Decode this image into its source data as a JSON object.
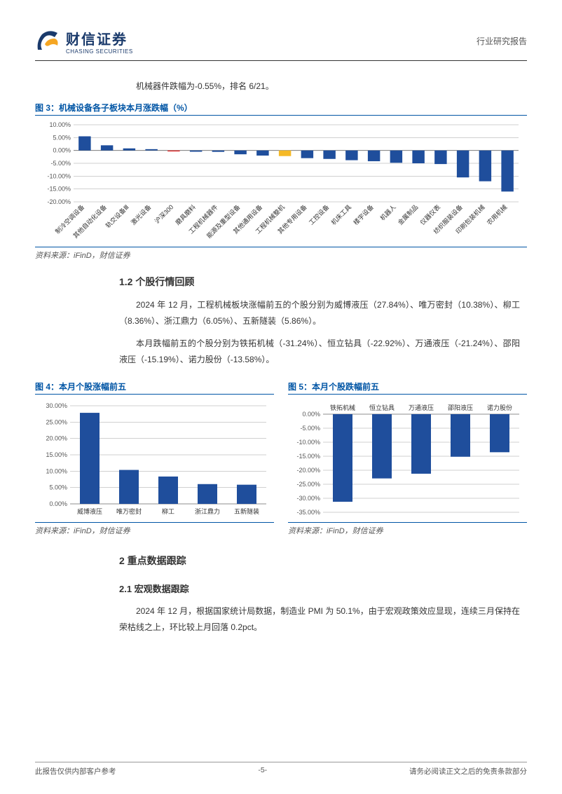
{
  "header": {
    "brand_cn": "财信证券",
    "brand_en": "CHASING SECURITIES",
    "report_type": "行业研究报告",
    "logo_colors": {
      "base": "#1a3a6b",
      "accent": "#f5a623"
    }
  },
  "intro_line": "机械器件跌幅为-0.55%，排名 6/21。",
  "fig3": {
    "title": "图 3：机械设备各子板块本月涨跌幅（%）",
    "source": "资料来源：iFinD，财信证券",
    "type": "bar",
    "ylim": [
      -20,
      10
    ],
    "ytick_step": 5,
    "ytick_format": "%",
    "bar_width": 0.55,
    "default_color": "#1f4e9c",
    "categories": [
      "制冷空调设备",
      "其他自动化设备",
      "轨交设备Ⅲ",
      "激光设备",
      "沪深300",
      "磨具磨料",
      "工程机械器件",
      "能源及重型设备",
      "其他通用设备",
      "工程机械整机",
      "其他专用设备",
      "工控设备",
      "机床工具",
      "楼宇设备",
      "机器人",
      "金属制品",
      "仪器仪表",
      "纺织服装设备",
      "印刷包装机械",
      "农用机械"
    ],
    "values": [
      5.5,
      2.0,
      0.8,
      0.5,
      -0.4,
      -0.5,
      -0.55,
      -1.5,
      -2.0,
      -2.2,
      -3.0,
      -3.3,
      -3.8,
      -4.2,
      -4.8,
      -5.0,
      -5.3,
      -10.5,
      -12.0,
      -16.0
    ],
    "colors": [
      "#1f4e9c",
      "#1f4e9c",
      "#1f4e9c",
      "#1f4e9c",
      "#e03030",
      "#1f4e9c",
      "#1f4e9c",
      "#1f4e9c",
      "#1f4e9c",
      "#f5b926",
      "#1f4e9c",
      "#1f4e9c",
      "#1f4e9c",
      "#1f4e9c",
      "#1f4e9c",
      "#1f4e9c",
      "#1f4e9c",
      "#1f4e9c",
      "#1f4e9c",
      "#1f4e9c"
    ],
    "grid_color": "#888",
    "background": "#ffffff"
  },
  "section12": {
    "title": "1.2 个股行情回顾",
    "para1": "2024 年 12 月，工程机械板块涨幅前五的个股分别为威博液压（27.84%）、唯万密封（10.38%）、柳工（8.36%）、浙江鼎力（6.05%）、五新隧装（5.86%）。",
    "para2": "本月跌幅前五的个股分别为铁拓机械（-31.24%）、恒立钻具（-22.92%）、万通液压（-21.24%）、邵阳液压（-15.19%）、诺力股份（-13.58%）。"
  },
  "fig4": {
    "title": "图 4：本月个股涨幅前五",
    "source": "资料来源：iFinD，财信证券",
    "type": "bar",
    "ylim": [
      0,
      30
    ],
    "ytick_step": 5,
    "ytick_format": "%",
    "bar_width": 0.5,
    "bar_color": "#1f4e9c",
    "categories": [
      "威博液压",
      "唯万密封",
      "柳工",
      "浙江鼎力",
      "五新隧装"
    ],
    "values": [
      27.84,
      10.38,
      8.36,
      6.05,
      5.86
    ],
    "grid_color": "#888",
    "label_position": "bottom"
  },
  "fig5": {
    "title": "图 5：本月个股跌幅前五",
    "source": "资料来源：iFinD，财信证券",
    "type": "bar",
    "ylim": [
      -35,
      0
    ],
    "ytick_step": 5,
    "ytick_format": "%",
    "bar_width": 0.5,
    "bar_color": "#1f4e9c",
    "categories": [
      "铁拓机械",
      "恒立钻具",
      "万通液压",
      "邵阳液压",
      "诺力股份"
    ],
    "values": [
      -31.24,
      -22.92,
      -21.24,
      -15.19,
      -13.58
    ],
    "grid_color": "#888",
    "label_position": "top"
  },
  "section2": {
    "title": "2 重点数据跟踪",
    "sub21_title": "2.1 宏观数据跟踪",
    "para": "2024 年 12 月，根据国家统计局数据，制造业 PMI 为 50.1%，由于宏观政策效应显现，连续三月保持在荣枯线之上，环比较上月回落 0.2pct。"
  },
  "footer": {
    "left": "此报告仅供内部客户参考",
    "center": "-5-",
    "right": "请务必阅读正文之后的免责条款部分"
  }
}
